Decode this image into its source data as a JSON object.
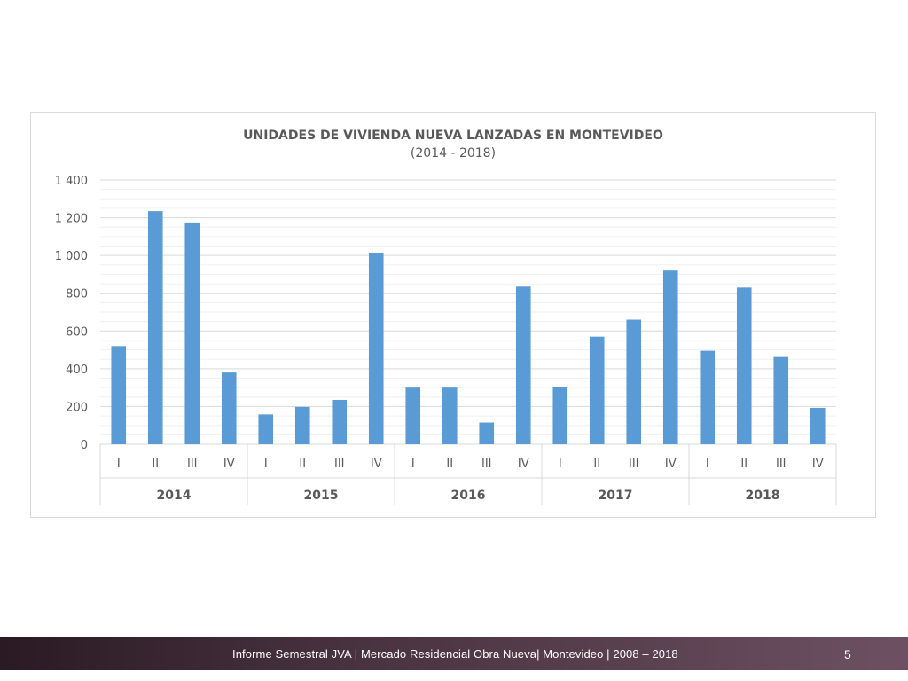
{
  "chart_data": {
    "type": "bar",
    "title": "UNIDADES DE VIVIENDA NUEVA LANZADAS EN MONTEVIDEO",
    "subtitle": "(2014 - 2018)",
    "ylim": [
      0,
      1400
    ],
    "y_ticks": [
      0,
      200,
      400,
      600,
      800,
      1000,
      1200,
      1400
    ],
    "y_tick_labels": [
      "0",
      "200",
      "400",
      "600",
      "800",
      "1 000",
      "1 200",
      "1 400"
    ],
    "grid": true,
    "color": "#5b9bd5",
    "groups": [
      {
        "label": "2014",
        "categories": [
          "I",
          "II",
          "III",
          "IV"
        ],
        "values": [
          520,
          1235,
          1175,
          380
        ]
      },
      {
        "label": "2015",
        "categories": [
          "I",
          "II",
          "III",
          "IV"
        ],
        "values": [
          158,
          198,
          235,
          1015
        ]
      },
      {
        "label": "2016",
        "categories": [
          "I",
          "II",
          "III",
          "IV"
        ],
        "values": [
          300,
          300,
          115,
          835
        ]
      },
      {
        "label": "2017",
        "categories": [
          "I",
          "II",
          "III",
          "IV"
        ],
        "values": [
          302,
          570,
          660,
          920
        ]
      },
      {
        "label": "2018",
        "categories": [
          "I",
          "II",
          "III",
          "IV"
        ],
        "values": [
          495,
          830,
          462,
          193
        ]
      }
    ]
  },
  "footer": {
    "text": "Informe Semestral JVA | Mercado Residencial Obra Nueva| Montevideo | 2008 – 2018",
    "page": "5"
  }
}
